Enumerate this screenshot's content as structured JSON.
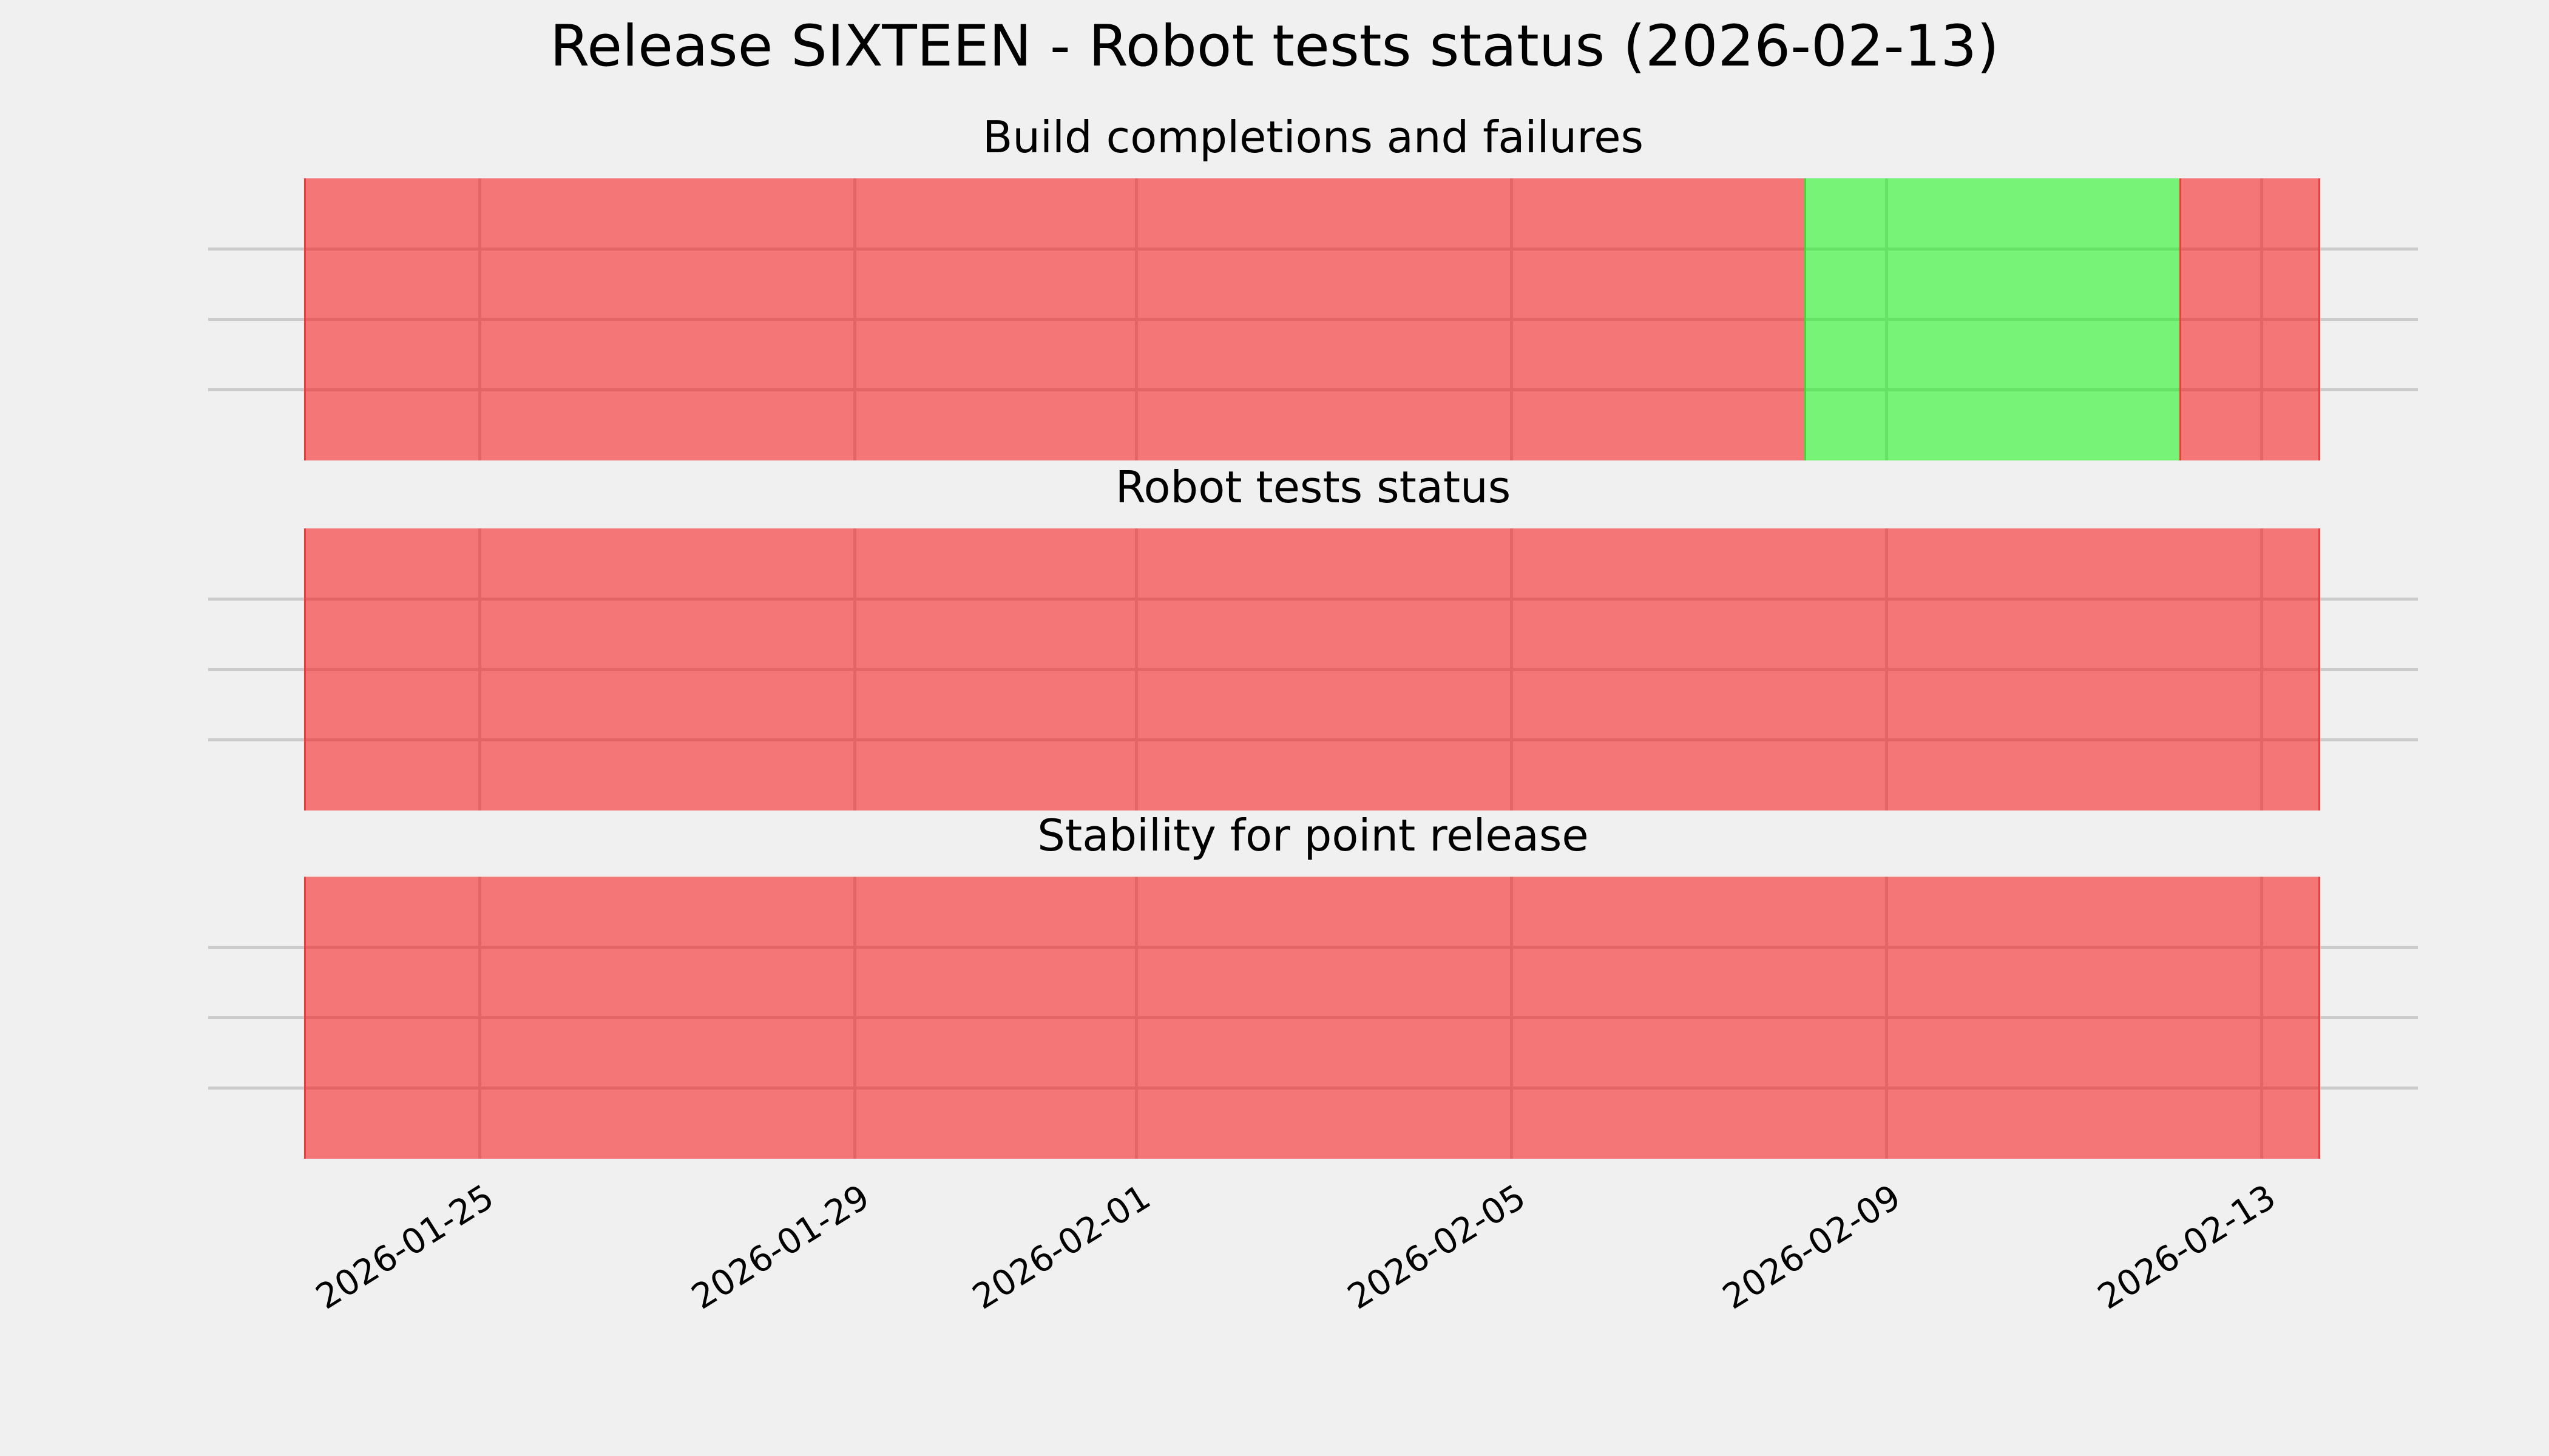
{
  "title": "Release SIXTEEN - Robot tests status (2026-02-13)",
  "chart_data": {
    "type": "heatmap",
    "title": "Release SIXTEEN - Robot tests status (2026-02-13)",
    "legend_position": "none",
    "grid": true,
    "grid_rows_per_panel": 4,
    "x_axis": {
      "start": "2026-01-22T02:30:00",
      "end": "2026-02-14T16:00:00",
      "tick_dates": [
        "2026-01-25T00:00:00",
        "2026-01-29T00:00:00",
        "2026-02-01T00:00:00",
        "2026-02-05T00:00:00",
        "2026-02-09T00:00:00",
        "2026-02-13T00:00:00"
      ],
      "tick_labels": [
        "2026-01-25",
        "2026-01-29",
        "2026-02-01",
        "2026-02-05",
        "2026-02-09",
        "2026-02-13"
      ],
      "tick_rotation_deg": 32
    },
    "data_window": {
      "start": "2026-01-23T03:00:00",
      "end": "2026-02-13T15:00:00"
    },
    "colors": {
      "background": "#f0f0f0",
      "grid": "#cbcbcb",
      "pass_fill": "rgba(20,247,20,0.55)",
      "fail_fill": "rgba(250,18,18,0.55)",
      "pass_edge": "#35e035",
      "fail_edge": "#f23c3c"
    },
    "panels": [
      {
        "title": "Build completions and failures",
        "segments": [
          {
            "status": "fail",
            "start": "2026-01-23T03:00:00",
            "end": "2026-02-08T03:00:00"
          },
          {
            "status": "pass",
            "start": "2026-02-08T03:00:00",
            "end": "2026-02-12T03:00:00"
          },
          {
            "status": "fail",
            "start": "2026-02-12T03:00:00",
            "end": "2026-02-13T15:00:00"
          }
        ]
      },
      {
        "title": "Robot tests status",
        "segments": [
          {
            "status": "fail",
            "start": "2026-01-23T03:00:00",
            "end": "2026-02-13T15:00:00"
          }
        ]
      },
      {
        "title": "Stability for point release",
        "segments": [
          {
            "status": "fail",
            "start": "2026-01-23T03:00:00",
            "end": "2026-02-13T15:00:00"
          }
        ]
      }
    ]
  }
}
